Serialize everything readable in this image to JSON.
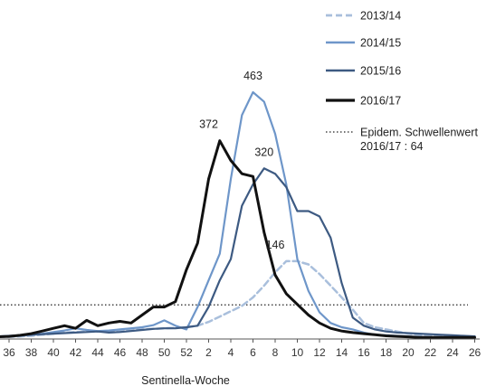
{
  "chart_data": {
    "type": "line",
    "xlabel": "Sentinella-Woche",
    "ylabel": "",
    "title": "",
    "ylim": [
      0,
      500
    ],
    "grid": false,
    "legend_position": "top-right",
    "x_ticks": [
      "36",
      "38",
      "40",
      "42",
      "44",
      "46",
      "48",
      "50",
      "52",
      "2",
      "4",
      "6",
      "8",
      "10",
      "12",
      "14",
      "16",
      "18",
      "20",
      "22",
      "24",
      "26"
    ],
    "x": [
      35,
      36,
      37,
      38,
      39,
      40,
      41,
      42,
      43,
      44,
      45,
      46,
      47,
      48,
      49,
      50,
      51,
      52,
      1,
      2,
      3,
      4,
      5,
      6,
      7,
      8,
      9,
      10,
      11,
      12,
      13,
      14,
      15,
      16,
      17,
      18,
      19,
      20,
      21,
      22,
      23,
      24,
      25,
      26
    ],
    "threshold": {
      "value": 64,
      "label_line1": "Epidem. Schwellenwert",
      "label_line2": "2016/17 : 64"
    },
    "series": [
      {
        "name": "2013/14",
        "color": "#a9bfdc",
        "style": "dashed",
        "width": 2.5,
        "values": [
          4,
          4,
          5,
          6,
          8,
          10,
          12,
          13,
          14,
          14,
          15,
          16,
          17,
          18,
          19,
          20,
          21,
          22,
          25,
          32,
          42,
          52,
          62,
          78,
          100,
          125,
          146,
          146,
          140,
          122,
          100,
          78,
          55,
          30,
          22,
          18,
          14,
          10,
          8,
          7,
          6,
          5,
          5,
          5
        ]
      },
      {
        "name": "2014/15",
        "color": "#6e96c9",
        "style": "solid",
        "width": 2.2,
        "values": [
          4,
          5,
          6,
          8,
          10,
          13,
          16,
          20,
          17,
          15,
          16,
          18,
          20,
          22,
          26,
          35,
          25,
          18,
          60,
          110,
          160,
          300,
          420,
          463,
          445,
          385,
          290,
          150,
          90,
          50,
          30,
          22,
          18,
          12,
          8,
          7,
          6,
          5,
          4,
          3,
          3,
          3,
          3,
          3
        ]
      },
      {
        "name": "2015/16",
        "color": "#3d5a82",
        "style": "solid",
        "width": 2.2,
        "values": [
          5,
          6,
          7,
          8,
          9,
          10,
          11,
          12,
          13,
          14,
          12,
          13,
          15,
          17,
          19,
          20,
          20,
          22,
          25,
          60,
          110,
          150,
          250,
          290,
          320,
          310,
          285,
          240,
          240,
          230,
          190,
          105,
          40,
          25,
          18,
          14,
          12,
          11,
          10,
          9,
          8,
          7,
          6,
          5
        ]
      },
      {
        "name": "2016/17",
        "color": "#111111",
        "style": "solid",
        "width": 3,
        "values": [
          4,
          5,
          7,
          10,
          15,
          20,
          25,
          20,
          35,
          25,
          30,
          33,
          30,
          45,
          60,
          60,
          70,
          130,
          180,
          300,
          372,
          335,
          310,
          305,
          200,
          120,
          85,
          65,
          45,
          30,
          20,
          15,
          12,
          10,
          8,
          6,
          5,
          4,
          3,
          3,
          3,
          3,
          3,
          3
        ]
      }
    ],
    "annotations": [
      {
        "text": "463",
        "x": 6,
        "y": 463
      },
      {
        "text": "372",
        "x": 2,
        "y": 372
      },
      {
        "text": "320",
        "x": 7,
        "y": 320
      },
      {
        "text": "146",
        "x": 8,
        "y": 146
      }
    ]
  }
}
